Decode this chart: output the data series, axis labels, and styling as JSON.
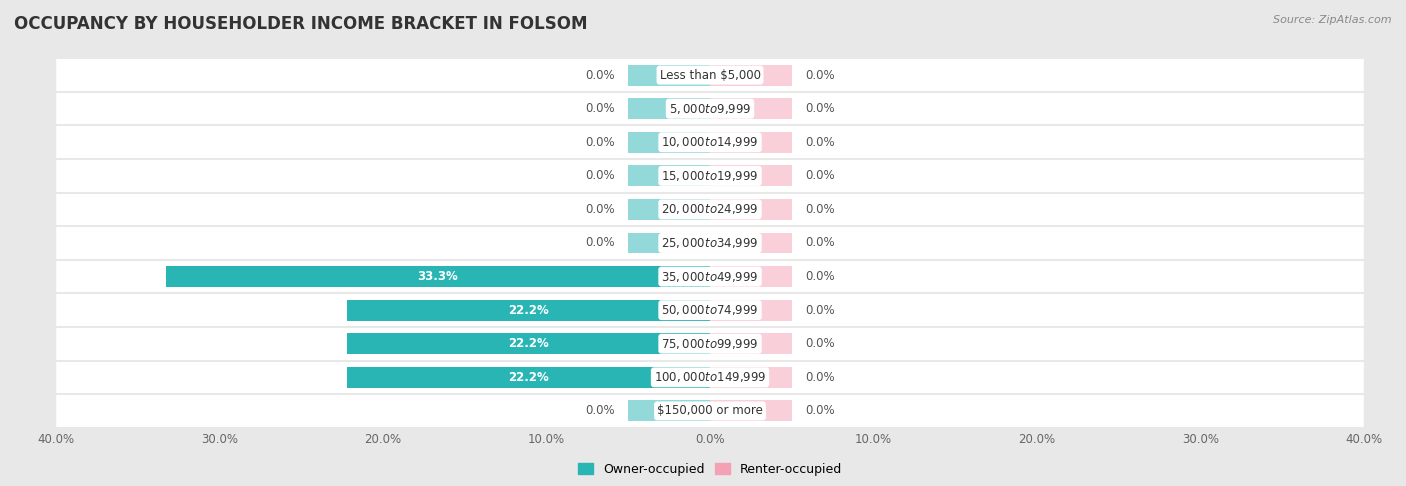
{
  "title": "OCCUPANCY BY HOUSEHOLDER INCOME BRACKET IN FOLSOM",
  "source": "Source: ZipAtlas.com",
  "categories": [
    "Less than $5,000",
    "$5,000 to $9,999",
    "$10,000 to $14,999",
    "$15,000 to $19,999",
    "$20,000 to $24,999",
    "$25,000 to $34,999",
    "$35,000 to $49,999",
    "$50,000 to $74,999",
    "$75,000 to $99,999",
    "$100,000 to $149,999",
    "$150,000 or more"
  ],
  "owner_values": [
    0.0,
    0.0,
    0.0,
    0.0,
    0.0,
    0.0,
    33.3,
    22.2,
    22.2,
    22.2,
    0.0
  ],
  "renter_values": [
    0.0,
    0.0,
    0.0,
    0.0,
    0.0,
    0.0,
    0.0,
    0.0,
    0.0,
    0.0,
    0.0
  ],
  "owner_color": "#2ab5b5",
  "renter_color": "#f4a0b5",
  "background_color": "#e8e8e8",
  "row_bg_color": "#ffffff",
  "axis_max": 40.0,
  "bar_height": 0.62,
  "title_fontsize": 12,
  "label_fontsize": 8.5,
  "category_fontsize": 8.5,
  "legend_fontsize": 9,
  "source_fontsize": 8,
  "stub_size": 5.0
}
